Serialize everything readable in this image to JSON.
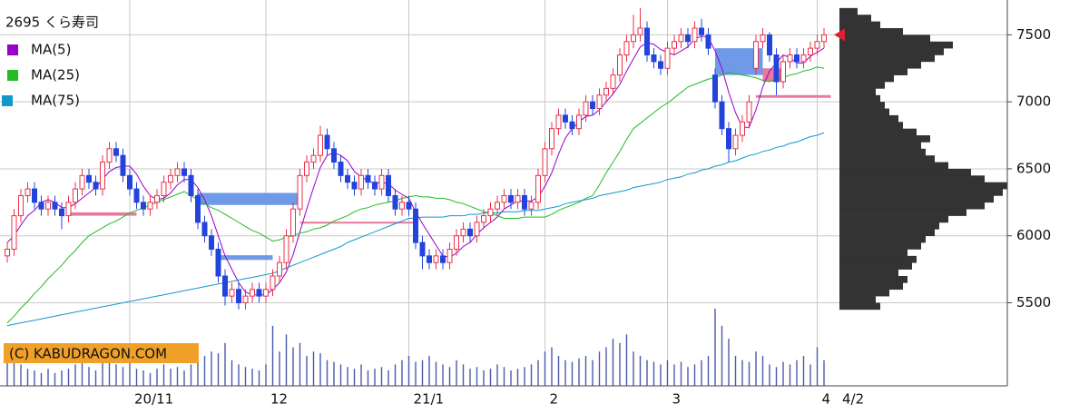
{
  "chart_data": {
    "type": "candlestick",
    "title": "2695 くら寿司",
    "credit": "(C) KABUDRAGON.COM",
    "last_date": "4/2",
    "categories": [
      null,
      null,
      null,
      null,
      null,
      null,
      null,
      null,
      null,
      null,
      null,
      null,
      null,
      null,
      null,
      null,
      null,
      null,
      "20/11",
      null,
      null,
      null,
      null,
      null,
      null,
      null,
      null,
      null,
      null,
      null,
      null,
      null,
      null,
      null,
      null,
      null,
      null,
      null,
      "12",
      null,
      null,
      null,
      null,
      null,
      null,
      null,
      null,
      null,
      null,
      null,
      null,
      null,
      null,
      null,
      null,
      null,
      null,
      null,
      null,
      "21/1",
      null,
      null,
      null,
      null,
      null,
      null,
      null,
      null,
      null,
      null,
      null,
      null,
      null,
      null,
      null,
      null,
      null,
      null,
      null,
      "2",
      null,
      null,
      null,
      null,
      null,
      null,
      null,
      null,
      null,
      null,
      null,
      null,
      null,
      null,
      null,
      null,
      null,
      "3",
      null,
      null,
      null,
      null,
      null,
      null,
      null,
      null,
      null,
      null,
      null,
      null,
      null,
      null,
      null,
      null,
      null,
      null,
      null,
      null,
      null,
      "4",
      null
    ],
    "ohlc": [
      [
        5850,
        5950,
        5800,
        5900
      ],
      [
        5900,
        6200,
        5850,
        6150
      ],
      [
        6150,
        6350,
        6100,
        6300
      ],
      [
        6300,
        6400,
        6250,
        6350
      ],
      [
        6350,
        6400,
        6200,
        6250
      ],
      [
        6250,
        6300,
        6150,
        6200
      ],
      [
        6200,
        6300,
        6150,
        6250
      ],
      [
        6250,
        6300,
        6150,
        6200
      ],
      [
        6200,
        6250,
        6050,
        6150
      ],
      [
        6150,
        6300,
        6100,
        6250
      ],
      [
        6250,
        6400,
        6200,
        6350
      ],
      [
        6350,
        6500,
        6300,
        6450
      ],
      [
        6450,
        6500,
        6350,
        6400
      ],
      [
        6400,
        6450,
        6300,
        6350
      ],
      [
        6350,
        6600,
        6300,
        6550
      ],
      [
        6550,
        6700,
        6500,
        6650
      ],
      [
        6650,
        6700,
        6550,
        6600
      ],
      [
        6600,
        6650,
        6400,
        6450
      ],
      [
        6450,
        6500,
        6300,
        6350
      ],
      [
        6350,
        6400,
        6200,
        6250
      ],
      [
        6250,
        6300,
        6150,
        6200
      ],
      [
        6200,
        6300,
        6150,
        6250
      ],
      [
        6250,
        6350,
        6200,
        6300
      ],
      [
        6300,
        6450,
        6250,
        6400
      ],
      [
        6400,
        6500,
        6350,
        6450
      ],
      [
        6450,
        6550,
        6400,
        6500
      ],
      [
        6500,
        6550,
        6400,
        6450
      ],
      [
        6450,
        6500,
        6250,
        6300
      ],
      [
        6300,
        6350,
        6050,
        6100
      ],
      [
        6100,
        6150,
        5950,
        6000
      ],
      [
        6000,
        6050,
        5850,
        5900
      ],
      [
        5900,
        5950,
        5650,
        5700
      ],
      [
        5700,
        5750,
        5480,
        5550
      ],
      [
        5550,
        5650,
        5500,
        5600
      ],
      [
        5600,
        5650,
        5450,
        5500
      ],
      [
        5500,
        5600,
        5450,
        5550
      ],
      [
        5550,
        5650,
        5500,
        5600
      ],
      [
        5600,
        5650,
        5500,
        5550
      ],
      [
        5550,
        5650,
        5500,
        5600
      ],
      [
        5600,
        5750,
        5550,
        5700
      ],
      [
        5700,
        5850,
        5650,
        5800
      ],
      [
        5800,
        6050,
        5750,
        6000
      ],
      [
        6000,
        6250,
        5950,
        6200
      ],
      [
        6200,
        6500,
        6150,
        6450
      ],
      [
        6450,
        6600,
        6400,
        6550
      ],
      [
        6550,
        6650,
        6500,
        6600
      ],
      [
        6600,
        6820,
        6550,
        6750
      ],
      [
        6750,
        6800,
        6600,
        6650
      ],
      [
        6650,
        6700,
        6500,
        6550
      ],
      [
        6550,
        6600,
        6400,
        6450
      ],
      [
        6450,
        6500,
        6350,
        6400
      ],
      [
        6400,
        6450,
        6300,
        6350
      ],
      [
        6350,
        6500,
        6300,
        6450
      ],
      [
        6450,
        6500,
        6350,
        6400
      ],
      [
        6400,
        6450,
        6300,
        6350
      ],
      [
        6350,
        6500,
        6300,
        6450
      ],
      [
        6450,
        6500,
        6250,
        6300
      ],
      [
        6300,
        6350,
        6150,
        6200
      ],
      [
        6200,
        6300,
        6150,
        6250
      ],
      [
        6250,
        6300,
        6150,
        6200
      ],
      [
        6200,
        6250,
        5900,
        5950
      ],
      [
        5950,
        6000,
        5750,
        5850
      ],
      [
        5850,
        5900,
        5750,
        5800
      ],
      [
        5800,
        5900,
        5750,
        5850
      ],
      [
        5850,
        5900,
        5750,
        5800
      ],
      [
        5800,
        5950,
        5750,
        5900
      ],
      [
        5900,
        6050,
        5850,
        6000
      ],
      [
        6000,
        6100,
        5950,
        6050
      ],
      [
        6050,
        6100,
        5950,
        6000
      ],
      [
        6000,
        6150,
        5950,
        6100
      ],
      [
        6100,
        6200,
        6050,
        6150
      ],
      [
        6150,
        6250,
        6100,
        6200
      ],
      [
        6200,
        6300,
        6150,
        6250
      ],
      [
        6250,
        6350,
        6200,
        6300
      ],
      [
        6300,
        6350,
        6200,
        6250
      ],
      [
        6250,
        6350,
        6200,
        6300
      ],
      [
        6300,
        6350,
        6150,
        6200
      ],
      [
        6200,
        6300,
        6150,
        6250
      ],
      [
        6250,
        6500,
        6200,
        6450
      ],
      [
        6450,
        6700,
        6400,
        6650
      ],
      [
        6650,
        6850,
        6600,
        6800
      ],
      [
        6800,
        6950,
        6750,
        6900
      ],
      [
        6900,
        6950,
        6800,
        6850
      ],
      [
        6850,
        6900,
        6750,
        6800
      ],
      [
        6800,
        6950,
        6750,
        6900
      ],
      [
        6900,
        7050,
        6850,
        7000
      ],
      [
        7000,
        7050,
        6900,
        6950
      ],
      [
        6950,
        7100,
        6900,
        7050
      ],
      [
        7050,
        7150,
        7000,
        7100
      ],
      [
        7100,
        7250,
        7050,
        7200
      ],
      [
        7200,
        7400,
        7150,
        7350
      ],
      [
        7350,
        7500,
        7300,
        7450
      ],
      [
        7450,
        7650,
        7400,
        7500
      ],
      [
        7500,
        7700,
        7450,
        7550
      ],
      [
        7550,
        7600,
        7300,
        7350
      ],
      [
        7350,
        7400,
        7250,
        7300
      ],
      [
        7300,
        7350,
        7200,
        7250
      ],
      [
        7250,
        7450,
        7200,
        7400
      ],
      [
        7400,
        7500,
        7350,
        7450
      ],
      [
        7450,
        7550,
        7400,
        7500
      ],
      [
        7500,
        7550,
        7400,
        7450
      ],
      [
        7450,
        7600,
        7400,
        7550
      ],
      [
        7550,
        7620,
        7450,
        7500
      ],
      [
        7500,
        7550,
        7350,
        7400
      ],
      [
        7200,
        7250,
        6950,
        7000
      ],
      [
        7000,
        7050,
        6750,
        6800
      ],
      [
        6800,
        6850,
        6550,
        6650
      ],
      [
        6650,
        6800,
        6600,
        6750
      ],
      [
        6750,
        6900,
        6700,
        6850
      ],
      [
        6850,
        7050,
        6800,
        7000
      ],
      [
        7250,
        7500,
        7200,
        7450
      ],
      [
        7450,
        7550,
        7400,
        7500
      ],
      [
        7500,
        7520,
        7300,
        7350
      ],
      [
        7350,
        7400,
        7050,
        7150
      ],
      [
        7150,
        7350,
        7100,
        7300
      ],
      [
        7300,
        7400,
        7250,
        7350
      ],
      [
        7350,
        7400,
        7250,
        7300
      ],
      [
        7300,
        7400,
        7250,
        7350
      ],
      [
        7350,
        7450,
        7300,
        7400
      ],
      [
        7400,
        7500,
        7350,
        7450
      ],
      [
        7450,
        7550,
        7400,
        7500
      ]
    ],
    "up_color": "#e8304a",
    "down_color": "#2244dd",
    "series": [
      {
        "name": "MA(5)",
        "color": "#9900cc",
        "values": [
          5950,
          6000,
          6080,
          6150,
          6190,
          6250,
          6270,
          6250,
          6210,
          6210,
          6240,
          6280,
          6320,
          6360,
          6420,
          6480,
          6510,
          6520,
          6520,
          6460,
          6370,
          6300,
          6270,
          6280,
          6320,
          6380,
          6420,
          6420,
          6360,
          6270,
          6150,
          6000,
          5850,
          5750,
          5650,
          5580,
          5560,
          5560,
          5560,
          5600,
          5650,
          5730,
          5860,
          6030,
          6200,
          6360,
          6510,
          6600,
          6620,
          6600,
          6560,
          6480,
          6440,
          6410,
          6390,
          6400,
          6390,
          6340,
          6310,
          6280,
          6180,
          6090,
          6010,
          5930,
          5850,
          5840,
          5870,
          5920,
          5950,
          6010,
          6060,
          6100,
          6140,
          6200,
          6230,
          6260,
          6260,
          6260,
          6290,
          6370,
          6470,
          6610,
          6730,
          6800,
          6850,
          6890,
          6900,
          6940,
          7000,
          7060,
          7130,
          7230,
          7320,
          7410,
          7440,
          7430,
          7390,
          7370,
          7350,
          7380,
          7410,
          7470,
          7490,
          7480,
          7380,
          7250,
          7070,
          6920,
          6810,
          6810,
          6940,
          7110,
          7230,
          7290,
          7350,
          7330,
          7290,
          7290,
          7340,
          7370,
          7400
        ]
      },
      {
        "name": "MA(25)",
        "color": "#22bb22",
        "values": [
          5350,
          5400,
          5460,
          5510,
          5570,
          5620,
          5680,
          5730,
          5780,
          5840,
          5890,
          5950,
          6000,
          6030,
          6060,
          6090,
          6110,
          6140,
          6170,
          6190,
          6210,
          6230,
          6250,
          6270,
          6290,
          6310,
          6330,
          6300,
          6270,
          6240,
          6210,
          6190,
          6160,
          6130,
          6100,
          6070,
          6040,
          6020,
          5990,
          5960,
          5970,
          5990,
          6000,
          6020,
          6030,
          6050,
          6060,
          6080,
          6110,
          6130,
          6150,
          6180,
          6200,
          6210,
          6230,
          6240,
          6250,
          6260,
          6280,
          6290,
          6300,
          6290,
          6290,
          6280,
          6280,
          6270,
          6250,
          6240,
          6220,
          6200,
          6180,
          6170,
          6150,
          6130,
          6130,
          6130,
          6140,
          6140,
          6140,
          6140,
          6160,
          6190,
          6210,
          6230,
          6250,
          6280,
          6300,
          6380,
          6470,
          6550,
          6630,
          6720,
          6800,
          6840,
          6880,
          6920,
          6960,
          6990,
          7030,
          7070,
          7110,
          7130,
          7150,
          7170,
          7180,
          7200,
          7220,
          7210,
          7200,
          7190,
          7180,
          7160,
          7150,
          7170,
          7180,
          7200,
          7210,
          7230,
          7240,
          7260,
          7250
        ]
      },
      {
        "name": "MA(75)",
        "color": "#1199cc",
        "values": [
          5330,
          5340,
          5350,
          5360,
          5370,
          5380,
          5390,
          5400,
          5410,
          5420,
          5430,
          5440,
          5450,
          5460,
          5470,
          5480,
          5490,
          5500,
          5510,
          5520,
          5530,
          5540,
          5550,
          5560,
          5570,
          5580,
          5590,
          5600,
          5610,
          5620,
          5630,
          5640,
          5650,
          5660,
          5670,
          5680,
          5690,
          5700,
          5710,
          5720,
          5740,
          5760,
          5780,
          5800,
          5820,
          5840,
          5860,
          5880,
          5900,
          5920,
          5950,
          5970,
          5990,
          6010,
          6030,
          6050,
          6070,
          6090,
          6110,
          6130,
          6130,
          6140,
          6140,
          6140,
          6140,
          6150,
          6150,
          6150,
          6160,
          6160,
          6170,
          6170,
          6170,
          6180,
          6180,
          6180,
          6190,
          6190,
          6190,
          6200,
          6210,
          6220,
          6240,
          6250,
          6260,
          6270,
          6280,
          6300,
          6310,
          6320,
          6330,
          6340,
          6360,
          6370,
          6380,
          6390,
          6400,
          6420,
          6430,
          6440,
          6460,
          6470,
          6490,
          6500,
          6520,
          6530,
          6550,
          6560,
          6580,
          6600,
          6610,
          6630,
          6640,
          6660,
          6670,
          6690,
          6700,
          6720,
          6740,
          6750,
          6770
        ]
      }
    ],
    "volume": [
      30,
      45,
      25,
      20,
      18,
      15,
      20,
      15,
      18,
      20,
      25,
      30,
      22,
      18,
      35,
      40,
      25,
      22,
      28,
      20,
      18,
      15,
      20,
      25,
      20,
      22,
      18,
      25,
      30,
      35,
      40,
      38,
      50,
      30,
      25,
      22,
      20,
      18,
      25,
      70,
      40,
      60,
      45,
      50,
      35,
      40,
      38,
      30,
      28,
      25,
      22,
      20,
      25,
      18,
      20,
      22,
      18,
      25,
      30,
      35,
      28,
      30,
      35,
      28,
      25,
      22,
      30,
      25,
      20,
      22,
      18,
      20,
      25,
      22,
      18,
      20,
      22,
      25,
      30,
      40,
      45,
      35,
      30,
      28,
      32,
      35,
      30,
      40,
      45,
      55,
      50,
      60,
      40,
      35,
      30,
      28,
      25,
      30,
      25,
      28,
      22,
      25,
      30,
      35,
      90,
      70,
      55,
      35,
      30,
      28,
      40,
      35,
      25,
      22,
      28,
      25,
      30,
      35,
      25,
      45,
      30
    ],
    "volume_color": "#4a5aa8",
    "volume_profile": {
      "color": "#333333",
      "bins": [
        5450,
        5500,
        5550,
        5600,
        5650,
        5700,
        5750,
        5800,
        5850,
        5900,
        5950,
        6000,
        6050,
        6100,
        6150,
        6200,
        6250,
        6300,
        6350,
        6400,
        6450,
        6500,
        6550,
        6600,
        6650,
        6700,
        6750,
        6800,
        6850,
        6900,
        6950,
        7000,
        7050,
        7100,
        7150,
        7200,
        7250,
        7300,
        7350,
        7400,
        7450,
        7500,
        7550,
        7600,
        7650,
        7700
      ],
      "values": [
        45,
        40,
        55,
        70,
        75,
        65,
        80,
        85,
        75,
        90,
        95,
        105,
        110,
        120,
        140,
        160,
        170,
        180,
        185,
        160,
        145,
        120,
        105,
        95,
        90,
        100,
        85,
        70,
        65,
        55,
        50,
        45,
        40,
        50,
        60,
        75,
        90,
        105,
        115,
        125,
        100,
        70,
        45,
        35,
        20
      ]
    },
    "gaps": [
      {
        "low": 6230,
        "high": 6320,
        "color": "#6f9ae8"
      },
      {
        "low": 5820,
        "high": 5855,
        "color": "#6f9ae8"
      },
      {
        "low": 7200,
        "high": 7400,
        "color": "#6f9ae8"
      },
      {
        "low": 6150,
        "high": 6175,
        "color": "#e8789e"
      },
      {
        "low": 6095,
        "high": 6105,
        "color": "#e8789e"
      },
      {
        "low": 7030,
        "high": 7050,
        "color": "#e8789e"
      },
      {
        "low": 7150,
        "high": 7250,
        "color": "#e8789e"
      }
    ],
    "ylim": [
      4880,
      7760
    ],
    "yticks": [
      5500,
      6000,
      6500,
      7000,
      7500
    ],
    "grid": true
  }
}
